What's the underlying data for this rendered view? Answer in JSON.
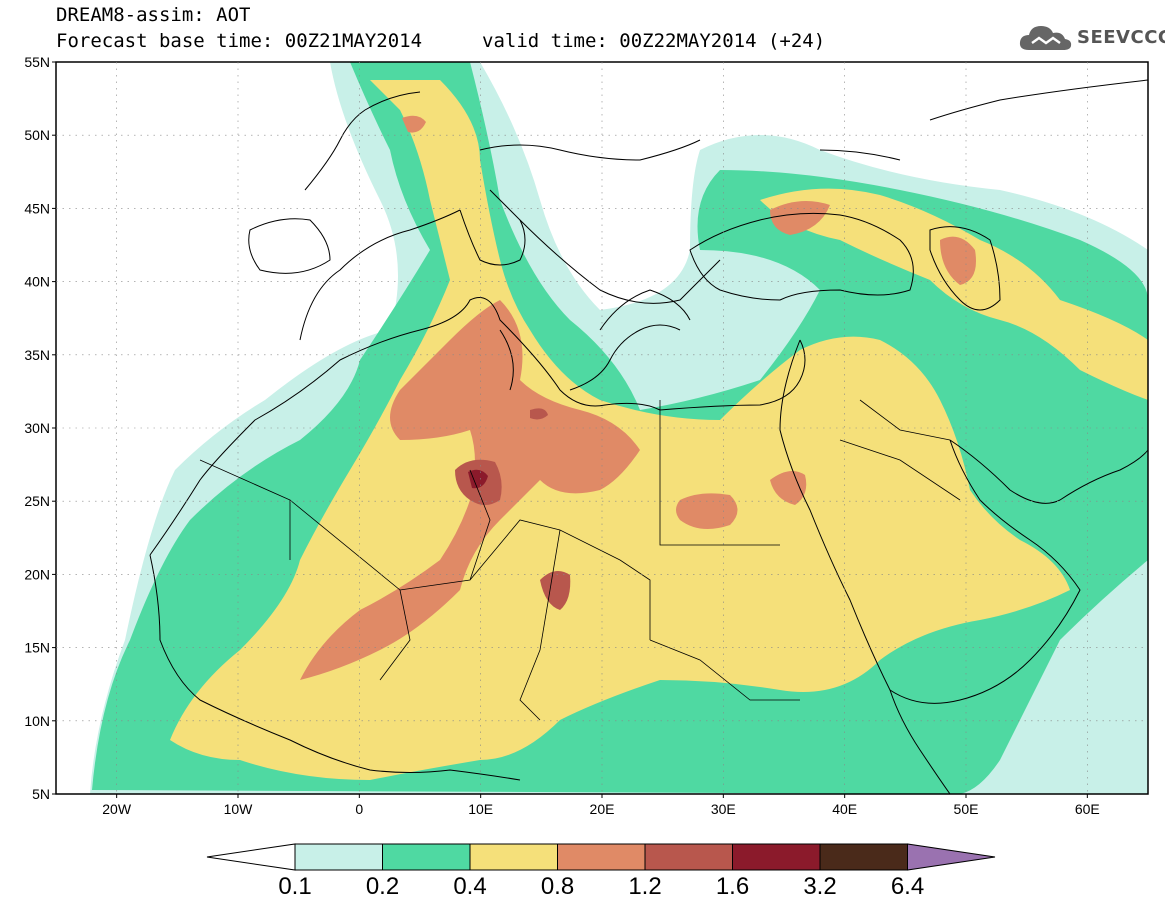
{
  "header": {
    "title": "DREAM8-assim: AOT",
    "base_time": "Forecast base time: 00Z21MAY2014",
    "valid_time": "valid time: 00Z22MAY2014 (+24)"
  },
  "logo": {
    "text": "SEEVCCC",
    "icon": "cloud-icon"
  },
  "map": {
    "lat_labels": [
      "55N",
      "50N",
      "45N",
      "40N",
      "35N",
      "30N",
      "25N",
      "20N",
      "15N",
      "10N",
      "5N"
    ],
    "lon_labels": [
      "20W",
      "10W",
      "0",
      "10E",
      "20E",
      "30E",
      "40E",
      "50E",
      "60E"
    ],
    "colors": {
      "c01": "#c8f0e8",
      "c02": "#4fd9a2",
      "c04": "#f5e07a",
      "c08": "#e08a66",
      "c12": "#b8574d",
      "c16": "#8b1a2b",
      "c32": "#4a2a1a",
      "c64": "#9a72b0"
    }
  },
  "colorbar": {
    "labels": [
      "0.1",
      "0.2",
      "0.4",
      "0.8",
      "1.2",
      "1.6",
      "3.2",
      "6.4"
    ],
    "colors": [
      "#c8f0e8",
      "#4fd9a2",
      "#f5e07a",
      "#e08a66",
      "#b8574d",
      "#8b1a2b",
      "#4a2a1a"
    ],
    "overflow_color": "#9a72b0"
  }
}
